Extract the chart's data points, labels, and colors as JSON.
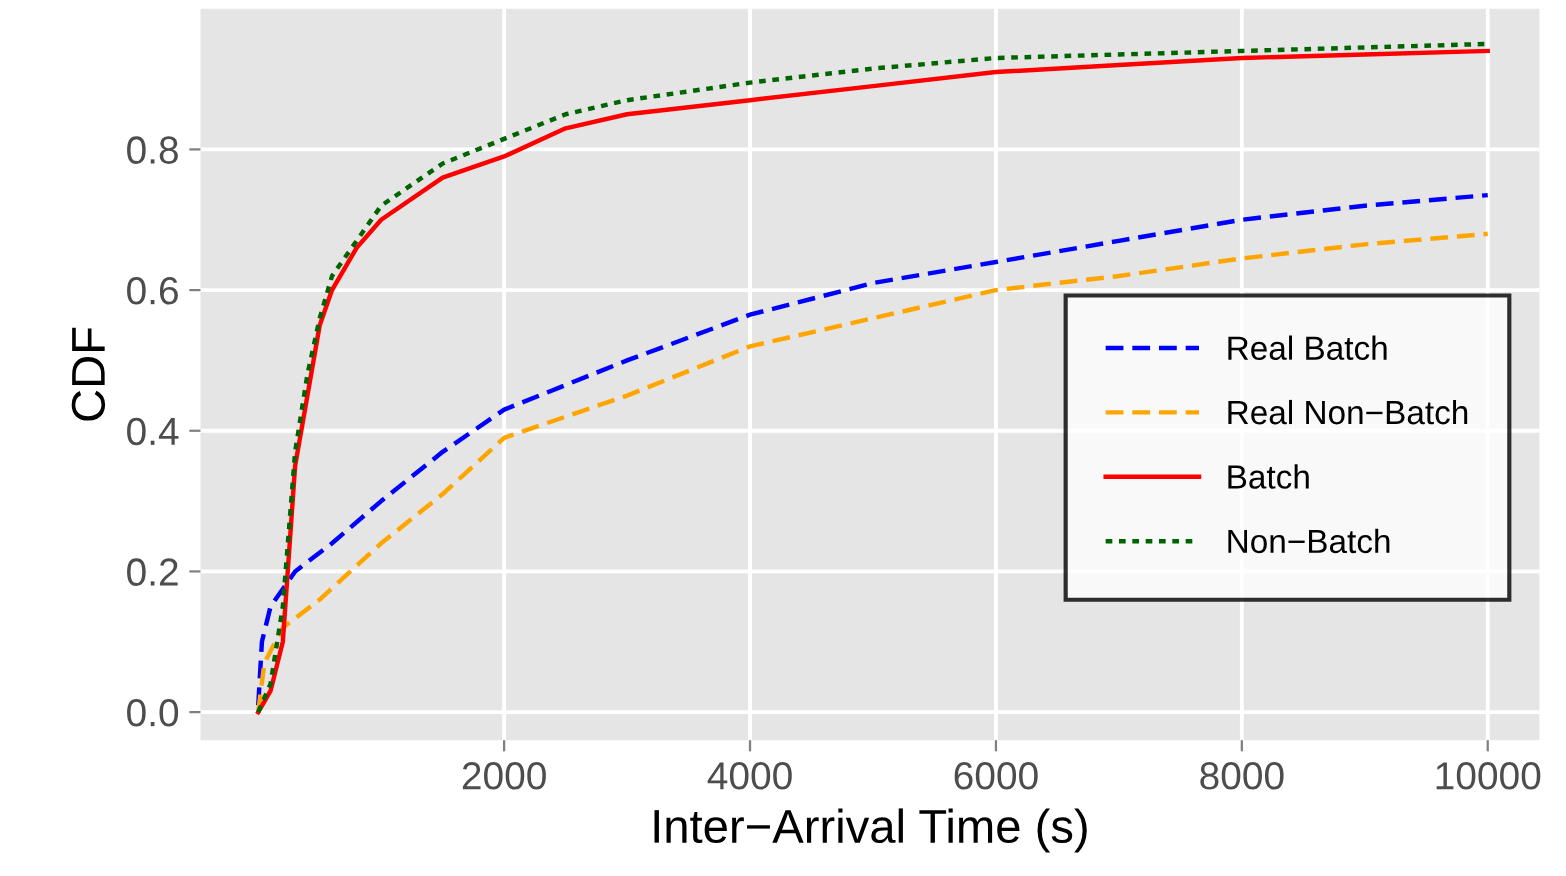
{
  "chart_data": {
    "type": "line",
    "xlabel": "Inter−Arrival Time (s)",
    "ylabel": "CDF",
    "xlim": [
      -470,
      10420
    ],
    "ylim": [
      -0.04,
      1.0
    ],
    "xticks": [
      2000,
      4000,
      6000,
      8000,
      10000
    ],
    "yticks": [
      {
        "value": 0,
        "label": "0.0"
      },
      {
        "value": 0.2,
        "label": "0.2"
      },
      {
        "value": 0.4,
        "label": "0.4"
      },
      {
        "value": 0.6,
        "label": "0.6"
      },
      {
        "value": 0.8,
        "label": "0.8"
      }
    ],
    "grid": true,
    "legend": "right",
    "series": [
      {
        "name": "Real Batch",
        "color": "#0000ff",
        "line_style": "dashed",
        "x": [
          0,
          30,
          100,
          300,
          600,
          1000,
          1500,
          2000,
          3000,
          4000,
          5000,
          6000,
          7000,
          8000,
          9000,
          10000
        ],
        "values": [
          0.01,
          0.1,
          0.15,
          0.2,
          0.24,
          0.3,
          0.37,
          0.43,
          0.5,
          0.565,
          0.61,
          0.64,
          0.67,
          0.7,
          0.72,
          0.735
        ]
      },
      {
        "name": "Real Non−Batch",
        "color": "#ffa500",
        "line_style": "dashed",
        "x": [
          0,
          50,
          200,
          500,
          1000,
          1500,
          2000,
          3000,
          4000,
          5000,
          6000,
          7000,
          8000,
          9000,
          10000
        ],
        "values": [
          0,
          0.07,
          0.12,
          0.16,
          0.24,
          0.31,
          0.39,
          0.45,
          0.52,
          0.56,
          0.6,
          0.62,
          0.645,
          0.665,
          0.68
        ]
      },
      {
        "name": "Batch",
        "color": "#ff0000",
        "line_style": "solid",
        "x": [
          0,
          100,
          200,
          300,
          400,
          500,
          600,
          800,
          1000,
          1500,
          2000,
          2500,
          3000,
          4000,
          5000,
          6000,
          7000,
          8000,
          9000,
          10000
        ],
        "values": [
          0,
          0.03,
          0.1,
          0.35,
          0.45,
          0.55,
          0.6,
          0.66,
          0.7,
          0.76,
          0.79,
          0.83,
          0.85,
          0.87,
          0.89,
          0.91,
          0.92,
          0.93,
          0.935,
          0.94
        ]
      },
      {
        "name": "Non−Batch",
        "color": "#006400",
        "line_style": "dotted",
        "x": [
          0,
          100,
          200,
          300,
          400,
          500,
          600,
          800,
          1000,
          1500,
          2000,
          2500,
          3000,
          4000,
          5000,
          6000,
          7000,
          8000,
          9000,
          10000
        ],
        "values": [
          0,
          0.04,
          0.15,
          0.37,
          0.48,
          0.56,
          0.62,
          0.67,
          0.72,
          0.78,
          0.815,
          0.85,
          0.87,
          0.895,
          0.915,
          0.93,
          0.935,
          0.94,
          0.945,
          0.95
        ]
      }
    ]
  }
}
